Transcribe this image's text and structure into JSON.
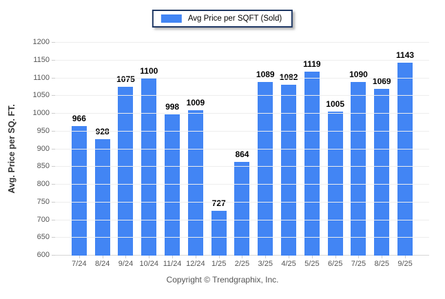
{
  "chart_data": {
    "type": "bar",
    "title": "Avg Price per SQFT (Sold)",
    "categories": [
      "7/24",
      "8/24",
      "9/24",
      "10/24",
      "11/24",
      "12/24",
      "1/25",
      "2/25",
      "3/25",
      "4/25",
      "5/25",
      "6/25",
      "7/25",
      "8/25",
      "9/25"
    ],
    "values": [
      966,
      928,
      1075,
      1100,
      998,
      1009,
      727,
      864,
      1089,
      1082,
      1119,
      1005,
      1090,
      1069,
      1143
    ],
    "xlabel": "",
    "ylabel": "Avg. Price per SQ. FT.",
    "ylim": [
      600,
      1200
    ],
    "ytick_step": 50,
    "grid": true,
    "legend_position": "top-center",
    "bar_color": "#4285F4"
  },
  "legend": {
    "label": "Avg Price per SQFT (Sold)",
    "swatch_color": "#4285F4",
    "border_color": "#1f3864"
  },
  "colors": {
    "bar": "#4285F4",
    "gridline": "#ededed",
    "axis_line": "#d6d6d6",
    "tick_text": "#555555",
    "value_text": "#000000"
  },
  "footer": {
    "text": "Copyright © Trendgraphix, Inc."
  }
}
